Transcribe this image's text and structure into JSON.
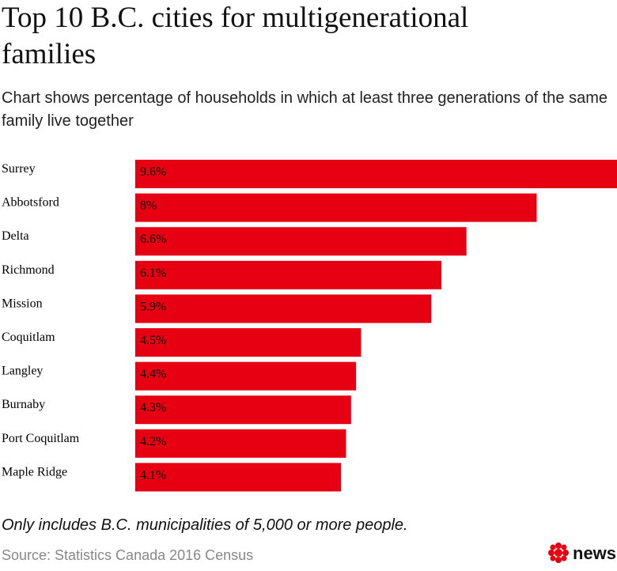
{
  "chart_data": {
    "type": "bar",
    "orientation": "horizontal",
    "title": "Top 10 B.C. cities for multigenerational families",
    "subtitle": "Chart shows percentage of households in which at least three generations of the same family live together",
    "categories": [
      "Surrey",
      "Abbotsford",
      "Delta",
      "Richmond",
      "Mission",
      "Coquitlam",
      "Langley",
      "Burnaby",
      "Port Coquitlam",
      "Maple Ridge"
    ],
    "values": [
      9.6,
      8,
      6.6,
      6.1,
      5.9,
      4.5,
      4.4,
      4.3,
      4.2,
      4.1
    ],
    "value_labels": [
      "9.6%",
      "8%",
      "6.6%",
      "6.1%",
      "5.9%",
      "4.5%",
      "4.4%",
      "4.3%",
      "4.2%",
      "4.1%"
    ],
    "color": "#e60012",
    "note": "Only includes B.C. municipalities of 5,000 or more people.",
    "source": "Source: Statistics Canada 2016 Census",
    "logo": "news"
  }
}
